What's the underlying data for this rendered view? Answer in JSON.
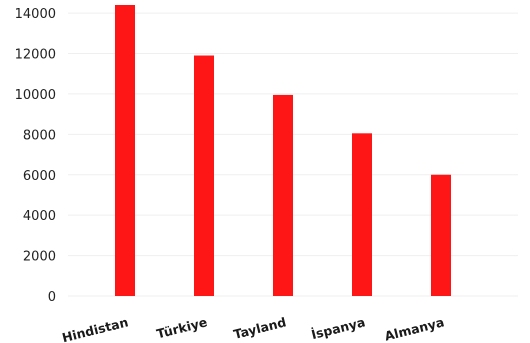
{
  "chart_data": {
    "type": "bar",
    "categories": [
      "Hindistan",
      "Türkiye",
      "Tayland",
      "İspanya",
      "Almanya"
    ],
    "values": [
      14400,
      11900,
      9950,
      8050,
      6000
    ],
    "ylim": [
      0,
      14400
    ],
    "yticks": [
      0,
      2000,
      4000,
      6000,
      8000,
      10000,
      12000,
      14000
    ],
    "grid": true,
    "colors": {
      "bar": "#fe1515"
    }
  }
}
